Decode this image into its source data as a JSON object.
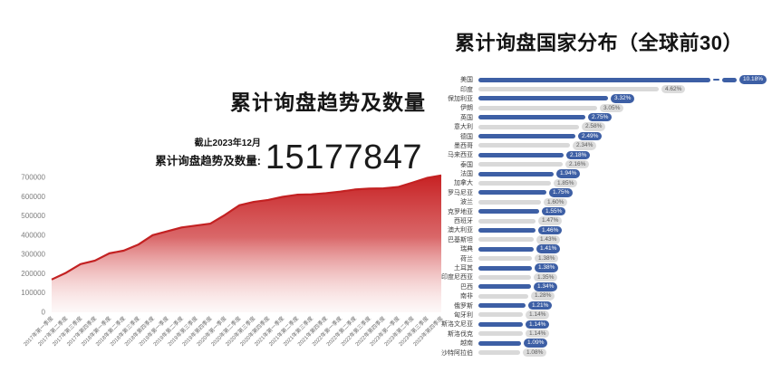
{
  "colors": {
    "accent_red": "#c72123",
    "accent_blue": "#3d5fa5",
    "bar_gray": "#d9d9d9",
    "badge_gray_bg": "#dcdcdc",
    "badge_gray_text": "#5a5a5a",
    "tick_gray": "#7d7d7d"
  },
  "chart_data": [
    {
      "type": "area",
      "title": "累计询盘趋势及数量",
      "annotation": {
        "as_of": "截止2023年12月",
        "label": "累计询盘趋势及数量:",
        "value": "15177847"
      },
      "x": [
        "2017年第一季度",
        "2017年第二季度",
        "2017年第三季度",
        "2017年第四季度",
        "2018年第一季度",
        "2018年第二季度",
        "2018年第三季度",
        "2018年第四季度",
        "2019年第一季度",
        "2019年第二季度",
        "2019年第三季度",
        "2019年第四季度",
        "2020年第一季度",
        "2020年第二季度",
        "2020年第三季度",
        "2020年第四季度",
        "2021年第一季度",
        "2021年第二季度",
        "2021年第三季度",
        "2021年第四季度",
        "2022年第一季度",
        "2022年第二季度",
        "2022年第三季度",
        "2022年第四季度",
        "2023年第一季度",
        "2023年第二季度",
        "2023年第三季度",
        "2023年第四季度"
      ],
      "values": [
        170000,
        205000,
        250000,
        268000,
        306000,
        320000,
        351000,
        400000,
        420000,
        440000,
        450000,
        460000,
        505000,
        555000,
        573000,
        583000,
        599000,
        610000,
        612000,
        618000,
        626000,
        637000,
        642000,
        643000,
        650000,
        673000,
        697000,
        710000
      ],
      "ylim": [
        0,
        700000
      ],
      "yticks": [
        0,
        100000,
        200000,
        300000,
        400000,
        500000,
        600000,
        700000
      ],
      "grid": false,
      "legend": "none",
      "line_color": "#c32122",
      "fill_color": "#c72123"
    },
    {
      "type": "bar",
      "orientation": "horizontal",
      "title": "累计询盘国家分布（全球前30）",
      "unit": "%",
      "axis_break_on_first_bar": true,
      "categories": [
        "美国",
        "印度",
        "保加利亚",
        "伊朗",
        "英国",
        "意大利",
        "德国",
        "墨西哥",
        "马来西亚",
        "泰国",
        "法国",
        "加拿大",
        "罗马尼亚",
        "波兰",
        "克罗地亚",
        "西班牙",
        "澳大利亚",
        "巴基斯坦",
        "瑞典",
        "荷兰",
        "土耳其",
        "印度尼西亚",
        "巴西",
        "南非",
        "俄罗斯",
        "匈牙利",
        "斯洛文尼亚",
        "斯洛伐克",
        "越南",
        "沙特阿拉伯"
      ],
      "values": [
        10.18,
        4.62,
        3.32,
        3.05,
        2.75,
        2.58,
        2.49,
        2.34,
        2.18,
        2.16,
        1.94,
        1.85,
        1.75,
        1.6,
        1.55,
        1.47,
        1.46,
        1.43,
        1.41,
        1.38,
        1.38,
        1.35,
        1.34,
        1.28,
        1.21,
        1.14,
        1.14,
        1.14,
        1.09,
        1.08
      ],
      "labels": [
        "10.18%",
        "4.62%",
        "3.32%",
        "3.05%",
        "2.75%",
        "2.58%",
        "2.49%",
        "2.34%",
        "2.18%",
        "2.16%",
        "1.94%",
        "1.85%",
        "1.75%",
        "1.60%",
        "1.55%",
        "1.47%",
        "1.46%",
        "1.43%",
        "1.41%",
        "1.38%",
        "1.38%",
        "1.35%",
        "1.34%",
        "1.28%",
        "1.21%",
        "1.14%",
        "1.14%",
        "1.14%",
        "1.09%",
        "1.08%"
      ],
      "bar_colors_alternate": [
        "#3d5fa5",
        "#d9d9d9"
      ]
    }
  ]
}
